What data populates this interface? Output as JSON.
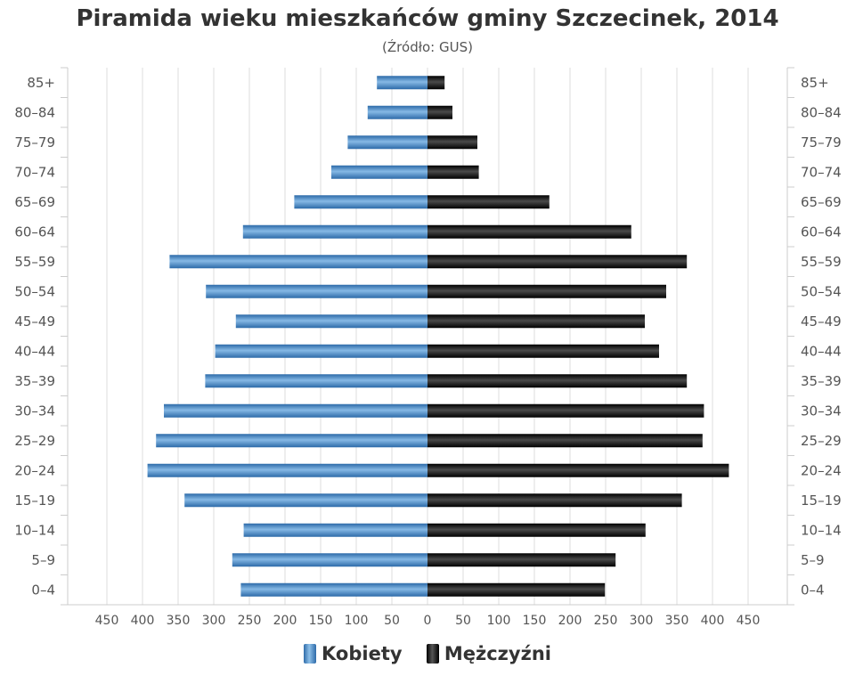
{
  "chart_data": {
    "type": "bar",
    "orientation": "horizontal-pyramid",
    "title": "Piramida wieku mieszkańców gminy Szczecinek, 2014",
    "subtitle": "(Źródło: GUS)",
    "categories": [
      "85+",
      "80–84",
      "75–79",
      "70–74",
      "65–69",
      "60–64",
      "55–59",
      "50–54",
      "45–49",
      "40–44",
      "35–39",
      "30–34",
      "25–29",
      "20–24",
      "15–19",
      "10–14",
      "5–9",
      "0–4"
    ],
    "x_ticks": [
      "450",
      "400",
      "350",
      "300",
      "250",
      "200",
      "150",
      "100",
      "50",
      "0",
      "50",
      "100",
      "150",
      "200",
      "250",
      "300",
      "350",
      "400",
      "450"
    ],
    "xlim": [
      -450,
      450
    ],
    "grid": true,
    "legend_position": "bottom",
    "series": [
      {
        "name": "Kobiety",
        "side": "left",
        "color": "#4a86c5",
        "values": [
          71,
          84,
          112,
          135,
          187,
          259,
          362,
          311,
          269,
          298,
          312,
          370,
          381,
          393,
          341,
          258,
          274,
          262
        ]
      },
      {
        "name": "Mężczyźni",
        "side": "right",
        "color": "#1a1a1a",
        "values": [
          24,
          35,
          70,
          72,
          171,
          286,
          364,
          335,
          305,
          325,
          364,
          388,
          386,
          423,
          357,
          306,
          264,
          249
        ]
      }
    ]
  }
}
